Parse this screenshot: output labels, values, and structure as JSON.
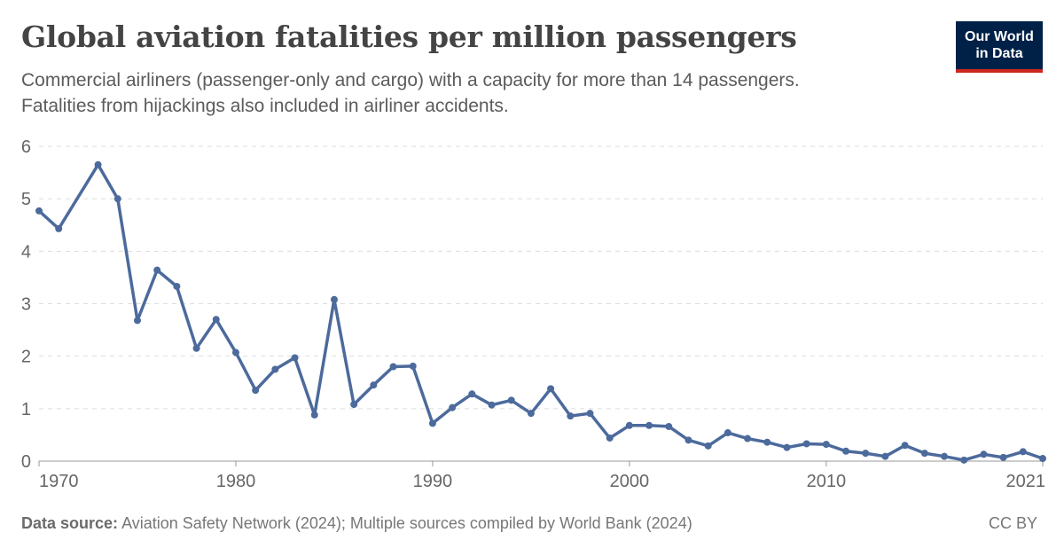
{
  "header": {
    "title": "Global aviation fatalities per million passengers",
    "subtitle_lines": [
      "Commercial airliners (passenger-only and cargo) with a capacity for more than 14 passengers.",
      "Fatalities from hijackings also included in airliner accidents."
    ]
  },
  "logo": {
    "line1": "Our World",
    "line2": "in Data"
  },
  "footer": {
    "source_label": "Data source:",
    "source_text": "Aviation Safety Network (2024); Multiple sources compiled by World Bank (2024)",
    "license": "CC BY"
  },
  "colors": {
    "line": "#4c6a9c",
    "grid": "#dddddd",
    "axis": "#999999",
    "text": "#666666"
  },
  "chart_data": {
    "type": "line",
    "title": "Global aviation fatalities per million passengers",
    "x_ticks": [
      1970,
      1980,
      1990,
      2000,
      2010,
      2021
    ],
    "y_ticks": [
      0,
      1,
      2,
      3,
      4,
      5,
      6
    ],
    "xlim": [
      1970,
      2021
    ],
    "ylim": [
      0,
      6
    ],
    "grid": "horizontal-dashed",
    "legend": "none",
    "series": [
      {
        "x": [
          1970,
          1971,
          1973,
          1974,
          1975,
          1976,
          1977,
          1978,
          1979,
          1980,
          1981,
          1982,
          1983,
          1984,
          1985,
          1986,
          1987,
          1988,
          1989,
          1990,
          1991,
          1992,
          1993,
          1994,
          1995,
          1996,
          1997,
          1998,
          1999,
          2000,
          2001,
          2002,
          2003,
          2004,
          2005,
          2006,
          2007,
          2008,
          2009,
          2010,
          2011,
          2012,
          2013,
          2014,
          2015,
          2016,
          2017,
          2018,
          2019,
          2020,
          2021
        ],
        "y": [
          4.77,
          4.43,
          5.65,
          5.0,
          2.68,
          3.64,
          3.33,
          2.15,
          2.7,
          2.07,
          1.35,
          1.75,
          1.97,
          0.88,
          3.08,
          1.08,
          1.45,
          1.8,
          1.81,
          0.72,
          1.02,
          1.28,
          1.07,
          1.16,
          0.91,
          1.38,
          0.86,
          0.91,
          0.44,
          0.68,
          0.68,
          0.66,
          0.4,
          0.29,
          0.54,
          0.43,
          0.36,
          0.26,
          0.33,
          0.32,
          0.19,
          0.15,
          0.09,
          0.3,
          0.15,
          0.09,
          0.02,
          0.13,
          0.07,
          0.18,
          0.05
        ]
      }
    ]
  }
}
